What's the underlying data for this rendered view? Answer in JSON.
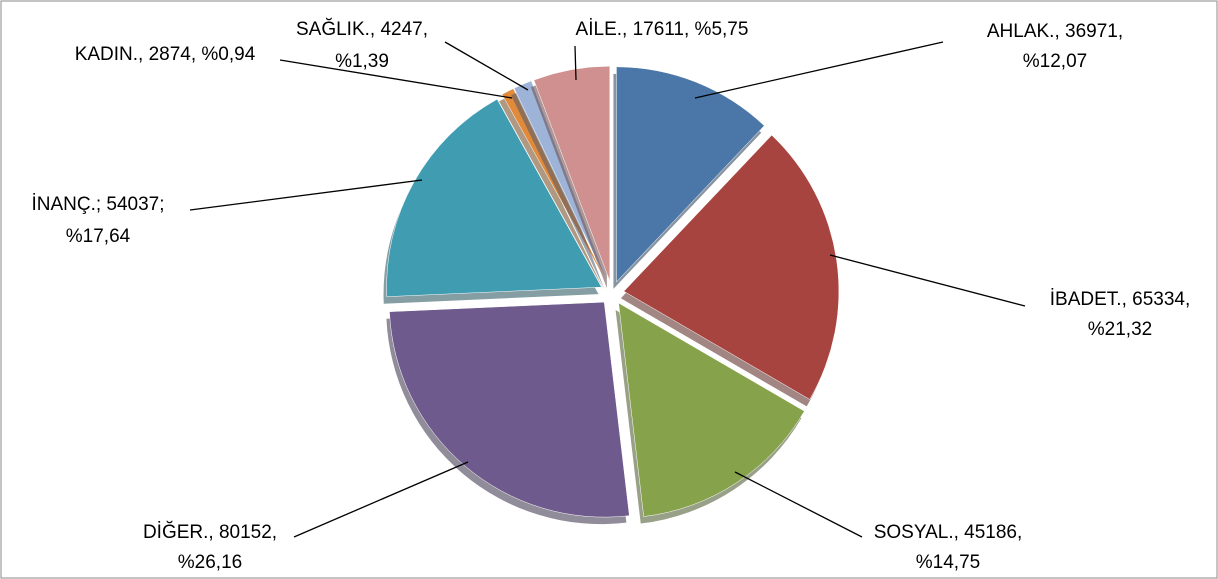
{
  "chart_data": {
    "type": "pie",
    "categories": [
      "AHLAK.",
      "İBADET.",
      "SOSYAL.",
      "DİĞER.",
      "İNANÇ.",
      "KADIN.",
      "SAĞLIK.",
      "AİLE."
    ],
    "values": [
      36971,
      65334,
      45186,
      80152,
      54037,
      2874,
      4247,
      17611
    ],
    "label_lines": [
      [
        "AHLAK., 36971,",
        "%12,07"
      ],
      [
        "İBADET., 65334,",
        "%21,32"
      ],
      [
        "SOSYAL., 45186,",
        "%14,75"
      ],
      [
        "DİĞER., 80152,",
        "%26,16"
      ],
      [
        "İNANÇ.; 54037;",
        "%17,64"
      ],
      [
        "KADIN., 2874, %0,94"
      ],
      [
        "SAĞLIK., 4247,",
        "%1,39"
      ],
      [
        "AİLE., 17611, %5,75"
      ]
    ],
    "colors": [
      "#4a76a8",
      "#a84440",
      "#86a24a",
      "#6e5a8c",
      "#3f9cb1",
      "#e08a3a",
      "#9db3d8",
      "#d09090"
    ]
  }
}
